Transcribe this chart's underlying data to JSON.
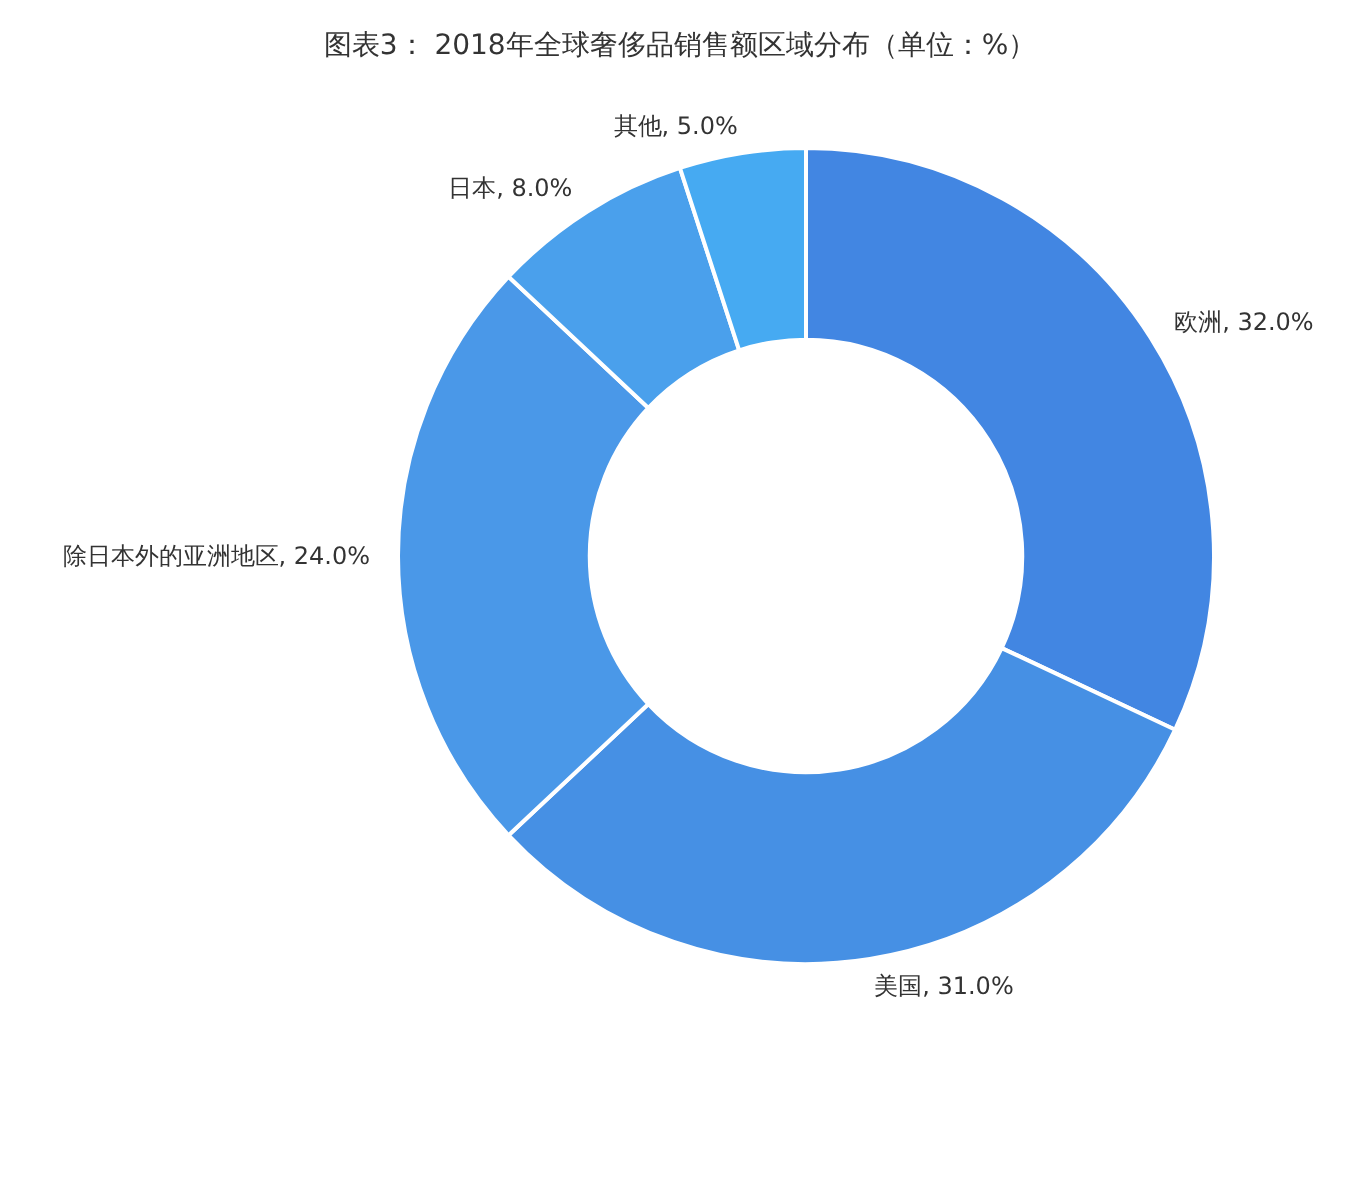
{
  "chart_data": {
    "type": "donut",
    "title": "图表3： 2018年全球奢侈品销售额区域分布（单位：%）",
    "categories": [
      "欧洲",
      "美国",
      "除日本外的亚洲地区",
      "日本",
      "其他"
    ],
    "values": [
      32.0,
      31.0,
      24.0,
      8.0,
      5.0
    ],
    "value_labels": [
      "32.0%",
      "31.0%",
      "24.0%",
      "8.0%",
      "5.0%"
    ],
    "colors": [
      "#4286e2",
      "#4690e4",
      "#4a98e8",
      "#4aa0ec",
      "#46aaf2"
    ],
    "legend": false
  }
}
